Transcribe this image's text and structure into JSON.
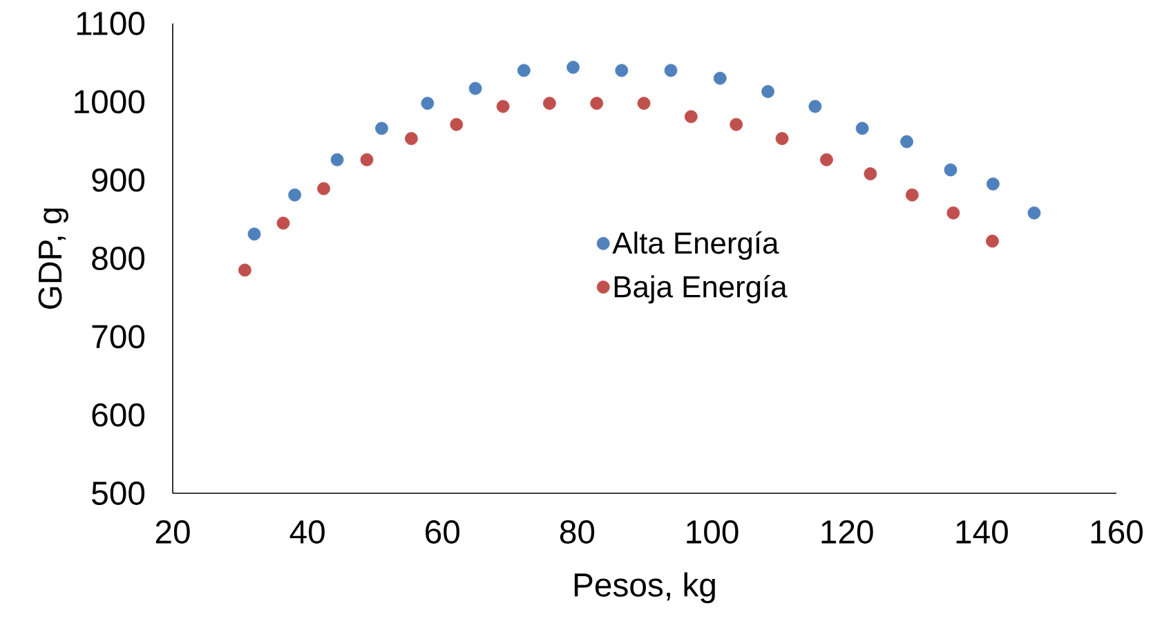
{
  "chart_data": {
    "type": "scatter",
    "xlabel": "Pesos, kg",
    "ylabel": "GDP, g",
    "xlim": [
      20,
      160
    ],
    "xticks": [
      20,
      40,
      60,
      80,
      100,
      120,
      140,
      160
    ],
    "ylim": [
      500,
      1100
    ],
    "yticks": [
      500,
      600,
      700,
      800,
      900,
      1000,
      1100
    ],
    "grid": false,
    "legend": "center",
    "marker": "circle",
    "series": [
      {
        "name": "Alta Energía",
        "color": "#4f81bd",
        "x": [
          32.1,
          38.1,
          44.4,
          51.0,
          57.8,
          64.9,
          72.1,
          79.4,
          86.6,
          93.9,
          101.2,
          108.3,
          115.3,
          122.3,
          128.9,
          135.4,
          141.7,
          147.8
        ],
        "values": [
          831,
          881,
          926,
          966,
          998,
          1017,
          1040,
          1044,
          1040,
          1040,
          1030,
          1013,
          994,
          966,
          949,
          913,
          895,
          858
        ]
      },
      {
        "name": "Baja Energía",
        "color": "#c0504d",
        "x": [
          30.7,
          36.4,
          42.4,
          48.8,
          55.4,
          62.1,
          69.0,
          75.9,
          82.9,
          89.9,
          96.9,
          103.6,
          110.4,
          117.0,
          123.5,
          129.7,
          135.8,
          141.6
        ],
        "values": [
          785,
          845,
          889,
          926,
          953,
          971,
          994,
          998,
          998,
          998,
          981,
          971,
          953,
          926,
          908,
          881,
          858,
          822
        ]
      }
    ]
  }
}
